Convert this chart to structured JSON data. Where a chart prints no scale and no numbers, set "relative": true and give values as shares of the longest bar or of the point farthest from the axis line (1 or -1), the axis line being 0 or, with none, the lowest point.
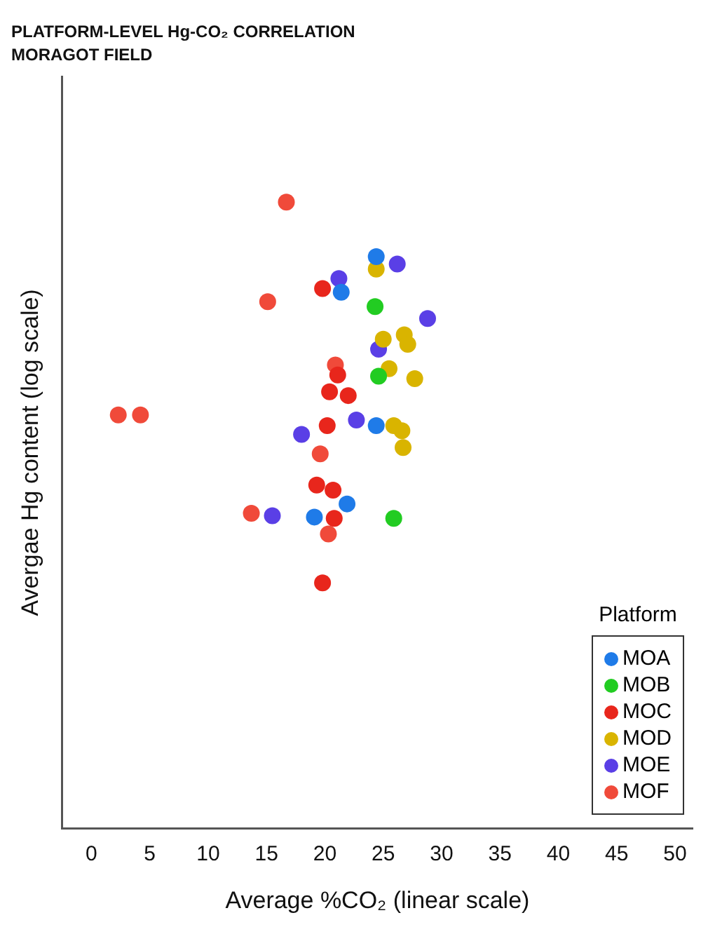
{
  "chart_data": {
    "type": "scatter",
    "title": "PLATFORM-LEVEL Hg-CO₂ CORRELATION",
    "subtitle": "MORAGOT FIELD",
    "xlabel": "Average %CO₂ (linear scale)",
    "ylabel": "Avergae Hg content (log scale)",
    "legend_title": "Platform",
    "legend": "bottom right",
    "marker": "circle",
    "relative": true,
    "xlim": [
      -2.5,
      51.5
    ],
    "xticks": [
      0,
      5,
      10,
      15,
      20,
      25,
      30,
      35,
      40,
      45,
      50
    ],
    "series": [
      {
        "name": "MOA",
        "color": "#1f7be8",
        "x": [
          24.4,
          21.4,
          24.4,
          21.9,
          19.1
        ],
        "values": [
          0.913,
          0.856,
          0.643,
          0.518,
          0.497
        ]
      },
      {
        "name": "MOB",
        "color": "#22cc22",
        "x": [
          24.3,
          24.6,
          25.9
        ],
        "values": [
          0.833,
          0.722,
          0.495
        ]
      },
      {
        "name": "MOC",
        "color": "#e8261c",
        "x": [
          19.8,
          21.1,
          20.4,
          22.0,
          20.2,
          19.3,
          20.7,
          20.8,
          19.8
        ],
        "values": [
          0.862,
          0.724,
          0.697,
          0.691,
          0.643,
          0.548,
          0.54,
          0.495,
          0.392
        ]
      },
      {
        "name": "MOD",
        "color": "#d9b400",
        "x": [
          24.4,
          25.0,
          26.8,
          27.1,
          25.5,
          27.7,
          25.9,
          26.6,
          26.7
        ],
        "values": [
          0.893,
          0.781,
          0.788,
          0.773,
          0.734,
          0.718,
          0.643,
          0.635,
          0.608
        ]
      },
      {
        "name": "MOE",
        "color": "#5a3fe6",
        "x": [
          26.2,
          21.2,
          28.8,
          24.6,
          22.7,
          18.0,
          15.5
        ],
        "values": [
          0.901,
          0.878,
          0.814,
          0.765,
          0.652,
          0.629,
          0.499
        ]
      },
      {
        "name": "MOF",
        "color": "#f04a3a",
        "x": [
          16.7,
          15.1,
          20.9,
          2.3,
          4.2,
          19.6,
          13.7,
          20.3
        ],
        "values": [
          1.0,
          0.841,
          0.74,
          0.66,
          0.66,
          0.598,
          0.503,
          0.47
        ]
      }
    ]
  }
}
